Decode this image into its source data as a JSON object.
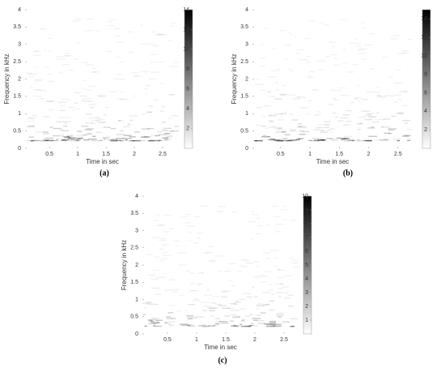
{
  "chart_data": [
    {
      "type": "heatmap",
      "caption": "(a)",
      "xlabel": "Time in sec",
      "ylabel": "Frequency in kHz",
      "xlim": [
        0.07,
        2.8
      ],
      "xticks": [
        0.5,
        1,
        1.5,
        2,
        2.5
      ],
      "ylim": [
        0,
        4
      ],
      "yticks": [
        0,
        0.5,
        1,
        1.5,
        2,
        2.5,
        3,
        3.5,
        4
      ],
      "clim": [
        0,
        14
      ],
      "cticks": [
        2,
        4,
        6,
        8,
        10,
        12,
        14
      ],
      "colormap": [
        "#ffffff",
        "#000000"
      ]
    },
    {
      "type": "heatmap",
      "caption": "(b)",
      "xlabel": "Time in sec",
      "ylabel": "Frequency in kHz",
      "xlim": [
        0.02,
        2.75
      ],
      "xticks": [
        0.5,
        1,
        1.5,
        2,
        2.5
      ],
      "ylim": [
        0,
        4
      ],
      "yticks": [
        0,
        0.5,
        1,
        1.5,
        2,
        2.5,
        3,
        3.5,
        4
      ],
      "clim": [
        0,
        15
      ],
      "cticks": [
        2,
        4,
        6,
        8,
        10,
        12,
        14
      ],
      "colormap": [
        "#ffffff",
        "#000000"
      ]
    },
    {
      "type": "heatmap",
      "caption": "(c)",
      "xlabel": "Time in sec",
      "ylabel": "Frequency in kHz",
      "xlim": [
        0.07,
        2.75
      ],
      "xticks": [
        0.5,
        1,
        1.5,
        2,
        2.5
      ],
      "ylim": [
        0,
        4
      ],
      "yticks": [
        0,
        0.5,
        1,
        1.5,
        2,
        2.5,
        3,
        3.5,
        4
      ],
      "clim": [
        0,
        10
      ],
      "cticks": [
        1,
        2,
        3,
        4,
        5,
        6,
        7,
        8,
        9,
        10
      ],
      "colormap": [
        "#ffffff",
        "#000000"
      ]
    }
  ]
}
